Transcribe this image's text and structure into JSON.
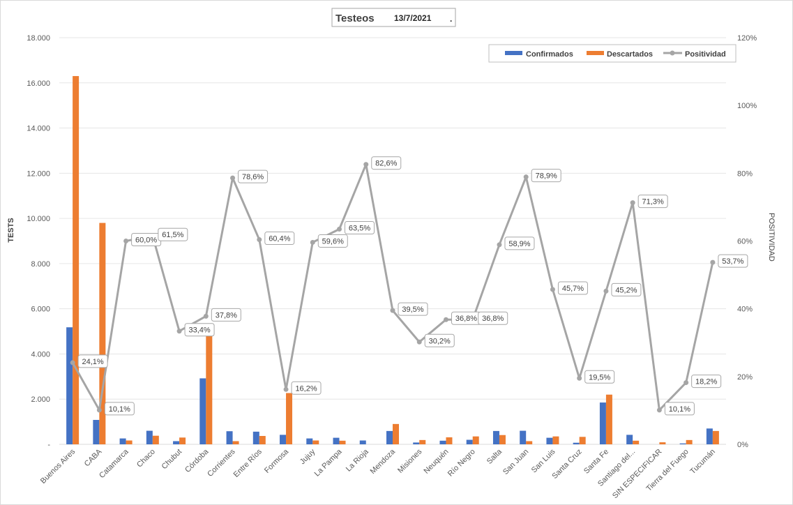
{
  "chart_data": {
    "type": "bar+line",
    "title": "Testeos",
    "date": "13/7/2021",
    "title_suffix": ".",
    "ylabel": "TESTS",
    "y2label": "POSITIVIDAD",
    "ylim": [
      0,
      18000
    ],
    "y2lim": [
      0,
      1.2
    ],
    "y_ticks": [
      "-",
      "2.000",
      "4.000",
      "6.000",
      "8.000",
      "10.000",
      "12.000",
      "14.000",
      "16.000",
      "18.000"
    ],
    "y2_ticks": [
      "0%",
      "20%",
      "40%",
      "60%",
      "80%",
      "100%",
      "120%"
    ],
    "grid": true,
    "legend_position": "top-right",
    "colors": {
      "confirmados": "#4472C4",
      "descartados": "#ED7D31",
      "positividad": "#A5A5A5"
    },
    "categories": [
      "Buenos Aires",
      "CABA",
      "Catamarca",
      "Chaco",
      "Chubut",
      "Córdoba",
      "Corrientes",
      "Entre Ríos",
      "Formosa",
      "Jujuy",
      "La Pampa",
      "La Rioja",
      "Mendoza",
      "Misiones",
      "Neuquén",
      "Río Negro",
      "Salta",
      "San Juan",
      "San Luis",
      "Santa Cruz",
      "Santa Fe",
      "Santiago del...",
      "SIN ESPECIFICAR",
      "Tierra del Fuego",
      "Tucumán"
    ],
    "series": [
      {
        "name": "Confirmados",
        "type": "bar",
        "values": [
          5180,
          1080,
          260,
          600,
          140,
          2920,
          580,
          560,
          420,
          260,
          290,
          170,
          590,
          80,
          160,
          200,
          590,
          600,
          290,
          70,
          1850,
          420,
          0,
          40,
          700
        ]
      },
      {
        "name": "Descartados",
        "type": "bar",
        "values": [
          16300,
          9800,
          170,
          380,
          300,
          5000,
          140,
          370,
          2270,
          170,
          160,
          0,
          900,
          190,
          310,
          350,
          410,
          140,
          350,
          330,
          2200,
          160,
          90,
          190,
          590
        ]
      },
      {
        "name": "Positividad",
        "type": "line",
        "values": [
          0.241,
          0.101,
          0.6,
          0.615,
          0.334,
          0.378,
          0.786,
          0.604,
          0.162,
          0.596,
          0.635,
          0.826,
          0.395,
          0.302,
          0.368,
          0.368,
          0.589,
          0.789,
          0.457,
          0.195,
          0.452,
          0.713,
          0.101,
          0.182,
          0.537
        ],
        "labels": [
          "24,1%",
          "10,1%",
          "60,0%",
          "61,5%",
          "33,4%",
          "37,8%",
          "78,6%",
          "60,4%",
          "16,2%",
          "59,6%",
          "63,5%",
          "82,6%",
          "39,5%",
          "30,2%",
          "36,8%",
          "36,8%",
          "58,9%",
          "78,9%",
          "45,7%",
          "19,5%",
          "45,2%",
          "71,3%",
          "10,1%",
          "18,2%",
          "53,7%"
        ]
      }
    ]
  }
}
